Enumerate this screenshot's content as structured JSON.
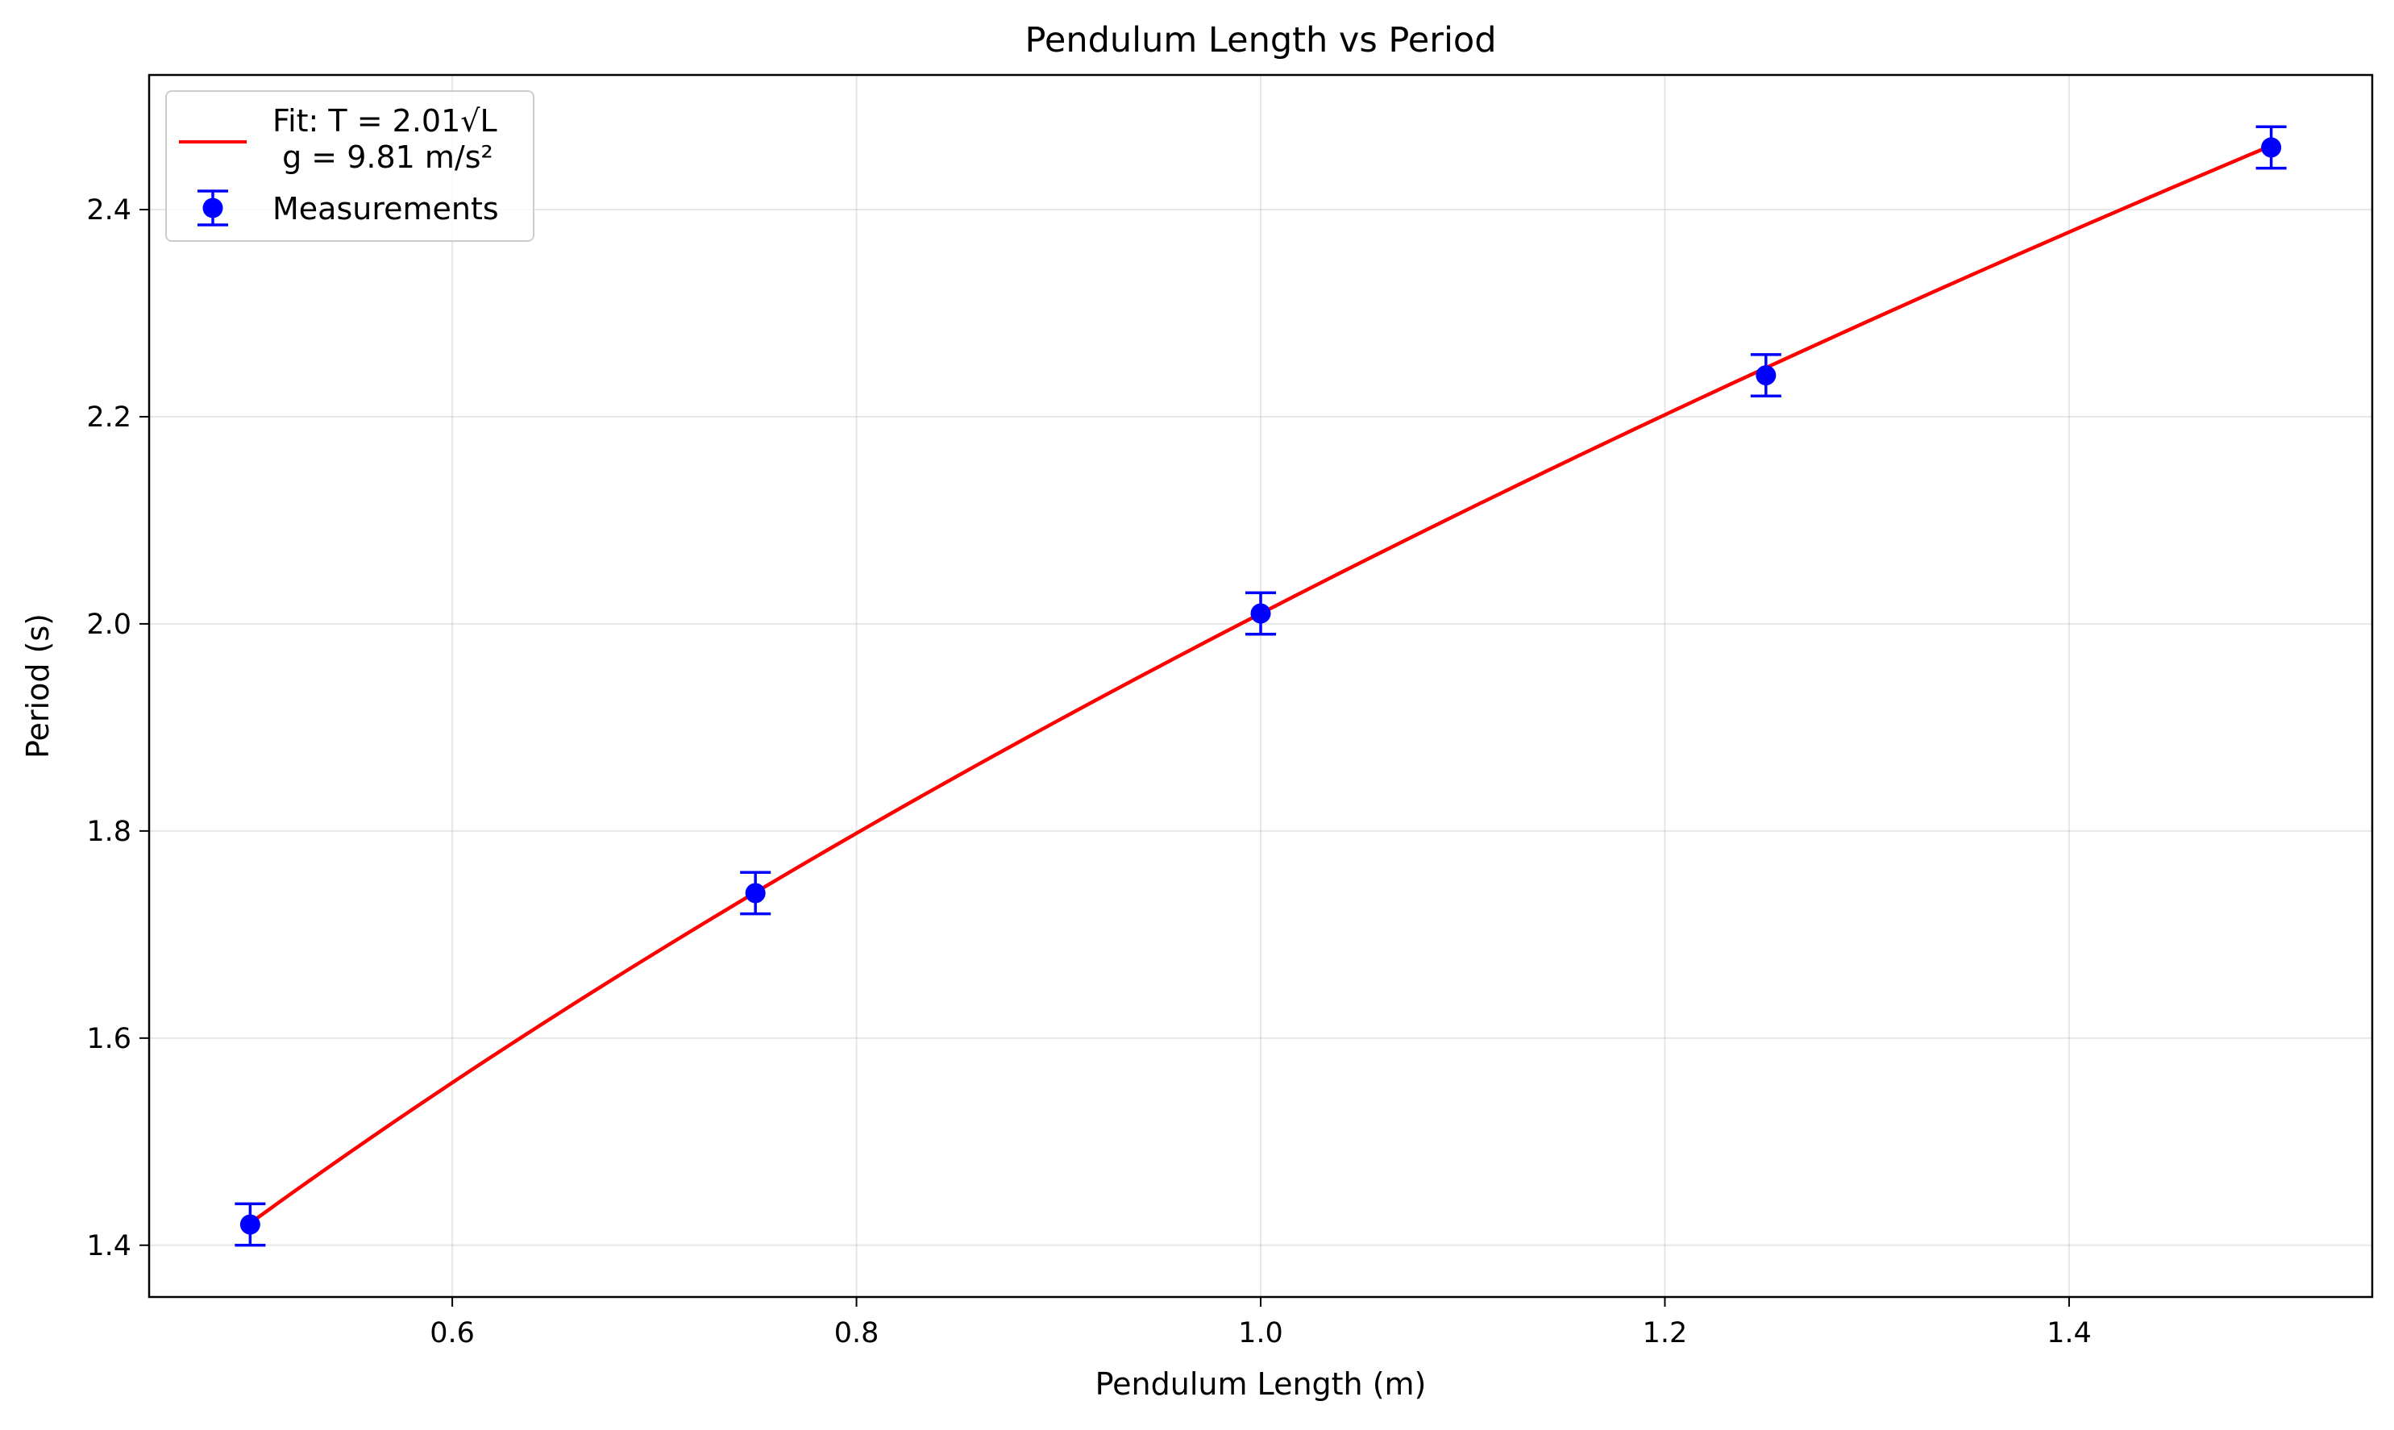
{
  "chart_data": {
    "type": "scatter",
    "title": "Pendulum Length vs Period",
    "xlabel": "Pendulum Length (m)",
    "ylabel": "Period (s)",
    "xlim": [
      0.45,
      1.55
    ],
    "ylim": [
      1.35,
      2.53
    ],
    "xticks": [
      0.6,
      0.8,
      1.0,
      1.2,
      1.4
    ],
    "xtick_labels": [
      "0.6",
      "0.8",
      "1.0",
      "1.2",
      "1.4"
    ],
    "yticks": [
      1.4,
      1.6,
      1.8,
      2.0,
      2.2,
      2.4
    ],
    "ytick_labels": [
      "1.4",
      "1.6",
      "1.8",
      "2.0",
      "2.2",
      "2.4"
    ],
    "grid": true,
    "legend_position": "top-left",
    "series": [
      {
        "name": "Fit: T = 2.01√L\n g = 9.81 m/s²",
        "legend_line1": "Fit: T = 2.01√L",
        "legend_line2": " g = 9.81 m/s²",
        "kind": "line",
        "model": "T = 2.01√L",
        "coefficient": 2.01,
        "x_range": [
          0.5,
          1.5
        ],
        "color": "#ff0000"
      },
      {
        "name": "Measurements",
        "kind": "errorbar",
        "x": [
          0.5,
          0.75,
          1.0,
          1.25,
          1.5
        ],
        "y": [
          1.42,
          1.74,
          2.01,
          2.24,
          2.46
        ],
        "yerr": [
          0.02,
          0.02,
          0.02,
          0.02,
          0.02
        ],
        "color": "#0000ff"
      }
    ]
  }
}
